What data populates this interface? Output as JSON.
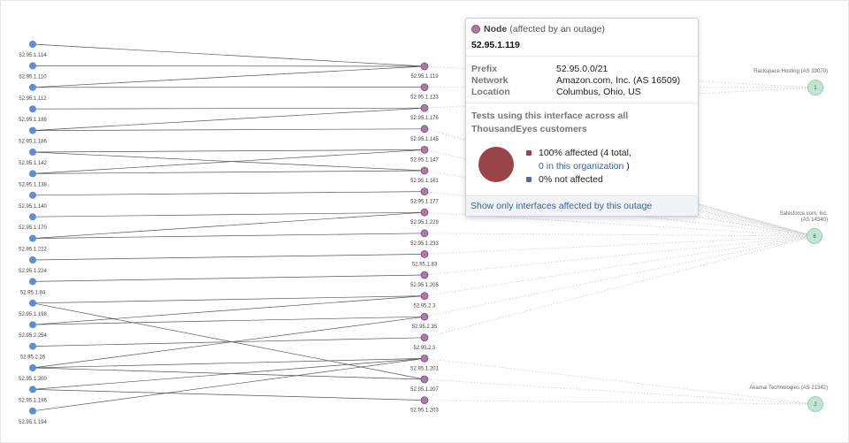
{
  "left_nodes": [
    "52.95.1.114",
    "52.95.1.110",
    "52.95.1.112",
    "52.95.1.188",
    "52.95.1.186",
    "52.95.1.142",
    "52.95.1.138",
    "52.95.1.140",
    "52.95.1.170",
    "52.95.1.222",
    "52.95.1.224",
    "52.95.1.84",
    "52.95.1.198",
    "52.95.2.254",
    "52.95.2.26",
    "52.95.1.200",
    "52.95.1.196",
    "52.95.1.194"
  ],
  "middle_nodes": [
    "52.95.1.119",
    "52.95.1.123",
    "52.95.1.176",
    "52.95.1.145",
    "52.95.1.147",
    "52.95.1.161",
    "52.95.1.177",
    "52.95.1.229",
    "52.95.1.233",
    "52.95.1.83",
    "52.95.1.205",
    "52.95.2.3",
    "52.95.2.35",
    "52.95.2.5",
    "52.95.1.201",
    "52.95.1.207",
    "52.95.1.203"
  ],
  "edges": [
    [
      0,
      0
    ],
    [
      1,
      0
    ],
    [
      2,
      0
    ],
    [
      2,
      1
    ],
    [
      3,
      2
    ],
    [
      4,
      2
    ],
    [
      4,
      3
    ],
    [
      5,
      4
    ],
    [
      5,
      5
    ],
    [
      6,
      5
    ],
    [
      6,
      4
    ],
    [
      7,
      6
    ],
    [
      8,
      7
    ],
    [
      9,
      7
    ],
    [
      9,
      8
    ],
    [
      10,
      9
    ],
    [
      11,
      10
    ],
    [
      12,
      11
    ],
    [
      13,
      11
    ],
    [
      13,
      12
    ],
    [
      14,
      13
    ],
    [
      15,
      12
    ],
    [
      15,
      14
    ],
    [
      15,
      15
    ],
    [
      16,
      14
    ],
    [
      16,
      16
    ],
    [
      12,
      15
    ],
    [
      17,
      14
    ]
  ],
  "destinations": [
    {
      "name": "Rackspace Hosting (AS 33070)",
      "count": "1"
    },
    {
      "name": "Salesforce.com, Inc. (AS 14340)",
      "count": "8"
    },
    {
      "name": "Akamai Technologies (AS 21342)",
      "count": "2"
    }
  ],
  "tooltip": {
    "title_bold": "Node",
    "title_rest": "(affected by an outage)",
    "ip": "52.95.1.119",
    "prefix_label": "Prefix",
    "prefix_value": "52.95.0.0/21",
    "network_label": "Network",
    "network_value": "Amazon.com, Inc. (AS 16509)",
    "location_label": "Location",
    "location_value": "Columbus, Ohio, US",
    "tests_heading": "Tests using this interface across all ThousandEyes customers",
    "affected_text": "100% affected (4 total,",
    "org_link": "0 in this organization",
    "org_close": ")",
    "not_affected_text": "0% not affected",
    "action_link": "Show only interfaces affected by this outage",
    "pie": {
      "affected_pct": 100,
      "not_affected_pct": 0
    }
  },
  "colors": {
    "left_node": "#5b8fd0",
    "middle_node": "#a87ba3",
    "middle_stroke": "#7a5574",
    "dest_node": "#bfe6d2",
    "dest_stroke": "#7ec9a3",
    "affected": "#9a4349",
    "not_affected": "#4a6fa8",
    "link": "#3a5f9e"
  }
}
